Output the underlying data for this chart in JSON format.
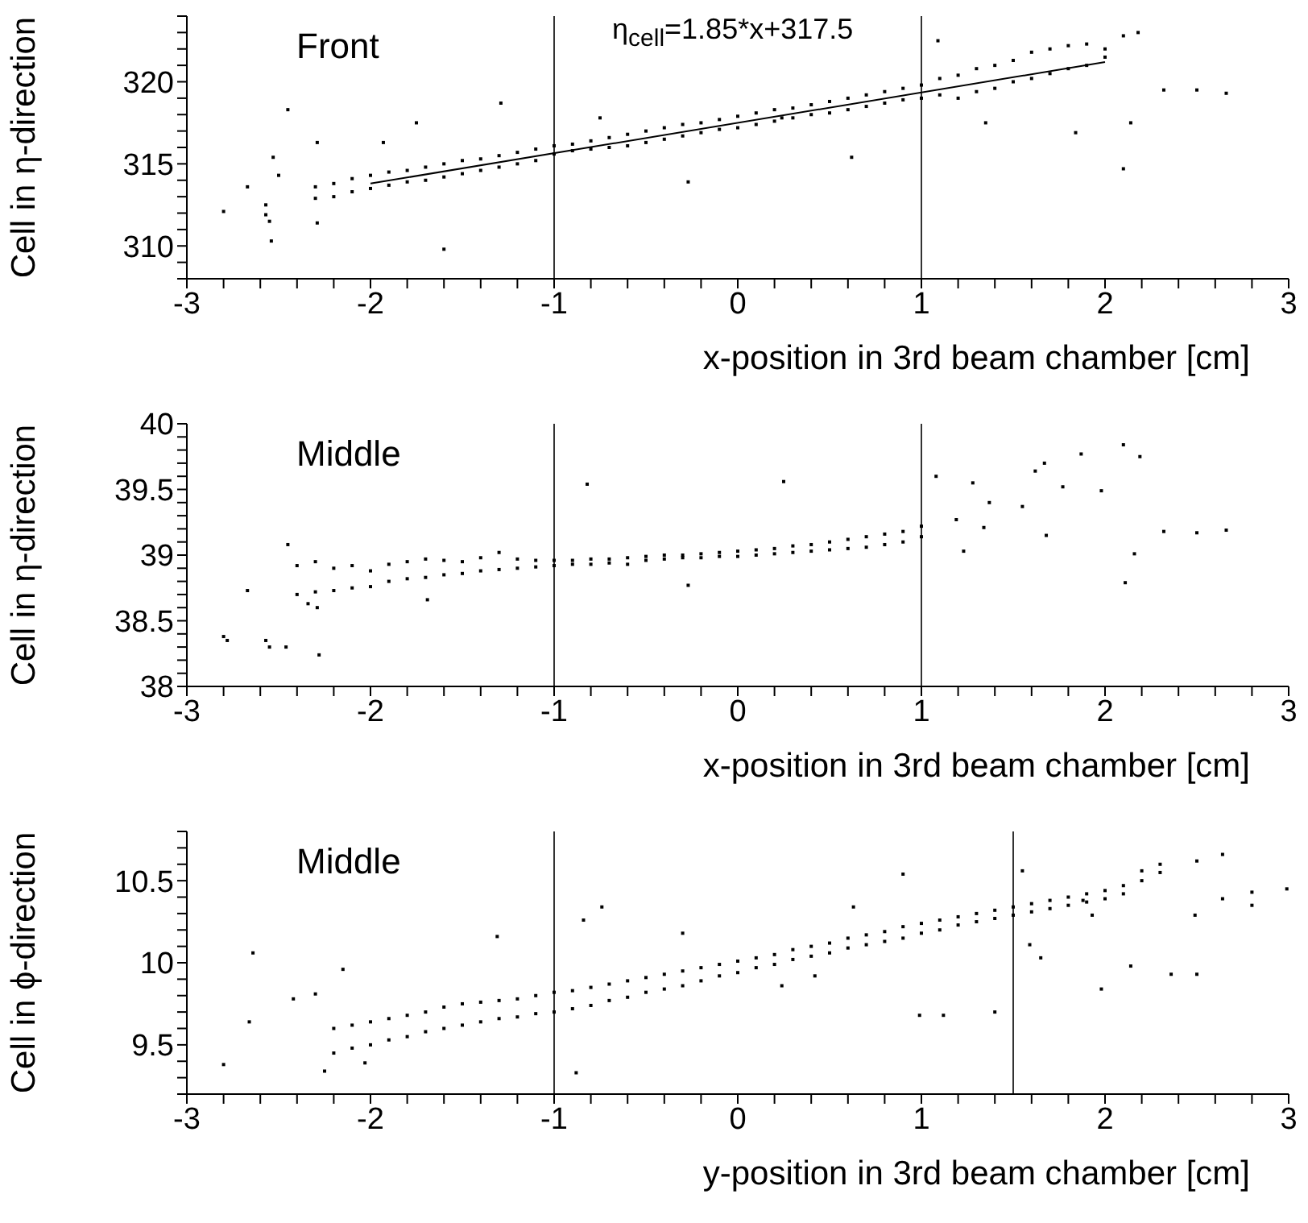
{
  "chart_data": [
    {
      "type": "scatter",
      "xlabel": "x-position in 3rd beam chamber [cm]",
      "ylabel": "Cell in η-direction",
      "annotations": [
        "Front",
        "η$_{cell}$=1.85*x+317.5"
      ],
      "marker": "square",
      "xlim": [
        -3,
        3
      ],
      "ylim": [
        308,
        324
      ],
      "xticks": [
        -3,
        {
          "value": -2.8,
          "label": null
        },
        {
          "value": -2.6,
          "label": null
        },
        {
          "value": -2.4,
          "label": null
        },
        {
          "value": -2.2,
          "label": null
        },
        -2,
        {
          "value": -1.8,
          "label": null
        },
        {
          "value": -1.6,
          "label": null
        },
        {
          "value": -1.4,
          "label": null
        },
        {
          "value": -1.2,
          "label": null
        },
        -1,
        {
          "value": -0.8,
          "label": null
        },
        {
          "value": -0.6,
          "label": null
        },
        {
          "value": -0.4,
          "label": null
        },
        {
          "value": -0.2,
          "label": null
        },
        0,
        {
          "value": 0.2,
          "label": null
        },
        {
          "value": 0.4,
          "label": null
        },
        {
          "value": 0.6,
          "label": null
        },
        {
          "value": 0.8,
          "label": null
        },
        1,
        {
          "value": 1.2,
          "label": null
        },
        {
          "value": 1.4,
          "label": null
        },
        {
          "value": 1.6,
          "label": null
        },
        {
          "value": 1.8,
          "label": null
        },
        2,
        {
          "value": 2.2,
          "label": null
        },
        {
          "value": 2.4,
          "label": null
        },
        {
          "value": 2.6,
          "label": null
        },
        {
          "value": 2.8,
          "label": null
        },
        3
      ],
      "yticks": [
        {
          "value": 308,
          "label": null
        },
        {
          "value": 309,
          "label": null
        },
        310,
        {
          "value": 311,
          "label": null
        },
        {
          "value": 312,
          "label": null
        },
        {
          "value": 313,
          "label": null
        },
        {
          "value": 314,
          "label": null
        },
        315,
        {
          "value": 316,
          "label": null
        },
        {
          "value": 317,
          "label": null
        },
        {
          "value": 318,
          "label": null
        },
        {
          "value": 319,
          "label": null
        },
        320,
        {
          "value": 321,
          "label": null
        },
        {
          "value": 322,
          "label": null
        },
        {
          "value": 323,
          "label": null
        },
        {
          "value": 324,
          "label": null
        }
      ],
      "ref_lines": [
        {
          "axis": "x",
          "value": -1
        },
        {
          "axis": "x",
          "value": 1
        }
      ],
      "series": [
        {
          "color": "#000000",
          "x": [
            -2.3,
            -2.2,
            -2.1,
            -2.0,
            -1.9,
            -1.8,
            -1.7,
            -1.6,
            -1.5,
            -1.4,
            -1.3,
            -1.2,
            -1.1,
            -1.0,
            -0.9,
            -0.8,
            -0.7,
            -0.6,
            -0.5,
            -0.4,
            -0.3,
            -0.2,
            -0.1,
            0.0,
            0.1,
            0.2,
            0.3,
            0.4,
            0.5,
            0.6,
            0.7,
            0.8,
            0.9,
            1.0,
            1.1,
            1.2,
            1.3,
            1.4,
            1.5,
            1.6,
            1.7,
            1.8,
            1.9,
            2.0,
            -2.3,
            -2.2,
            -2.1,
            -2.0,
            -1.9,
            -1.8,
            -1.7,
            -1.6,
            -1.5,
            -1.4,
            -1.3,
            -1.2,
            -1.1,
            -1.0,
            -0.9,
            -0.8,
            -0.7,
            -0.6,
            -0.5,
            -0.4,
            -0.3,
            -0.2,
            -0.1,
            0.0,
            0.1,
            0.2,
            0.3,
            0.4,
            0.5,
            0.6,
            0.7,
            0.8,
            0.9,
            1.0,
            1.1,
            1.2,
            1.3,
            1.4,
            1.5,
            1.6,
            1.7,
            1.8,
            1.9,
            2.0,
            -2.8,
            -2.67,
            -2.57,
            -2.57,
            -2.55,
            -2.54,
            -2.45,
            -2.53,
            -2.5,
            -2.29,
            -2.29,
            -1.6,
            -1.29,
            -0.27,
            0.62,
            1.09,
            2.1,
            2.18,
            2.1,
            2.14,
            2.32,
            2.5,
            2.66,
            1.84,
            1.35,
            0.24,
            -0.75,
            -1.75,
            -1.93
          ],
          "values": [
            313.6,
            313.8,
            314.1,
            314.3,
            314.5,
            314.6,
            314.8,
            315.0,
            315.2,
            315.3,
            315.5,
            315.7,
            315.9,
            316.1,
            316.2,
            316.4,
            316.6,
            316.8,
            317.0,
            317.2,
            317.4,
            317.5,
            317.7,
            317.9,
            318.1,
            318.3,
            318.4,
            318.6,
            318.8,
            319.0,
            319.2,
            319.4,
            319.6,
            319.8,
            320.2,
            320.4,
            320.8,
            321.0,
            321.3,
            321.8,
            322.0,
            322.2,
            322.3,
            322.0,
            312.9,
            313.0,
            313.3,
            313.5,
            313.7,
            313.9,
            314.0,
            314.2,
            314.4,
            314.6,
            314.8,
            315.0,
            315.2,
            315.6,
            315.8,
            315.9,
            316.0,
            316.1,
            316.3,
            316.5,
            316.7,
            316.9,
            317.1,
            317.2,
            317.4,
            317.6,
            317.8,
            318.0,
            318.1,
            318.3,
            318.5,
            318.7,
            318.9,
            319.0,
            319.2,
            319.0,
            319.4,
            319.6,
            320.0,
            320.2,
            320.5,
            320.8,
            321.0,
            321.5,
            312.1,
            313.6,
            312.5,
            311.9,
            311.5,
            310.3,
            318.3,
            315.4,
            314.3,
            316.3,
            311.4,
            309.8,
            318.7,
            313.9,
            315.4,
            322.5,
            322.8,
            323.0,
            314.7,
            317.5,
            319.5,
            319.5,
            319.3,
            316.9,
            317.5,
            317.8,
            317.8,
            317.5,
            316.3
          ]
        },
        {
          "type": "line",
          "marker": "none",
          "color": "#000000",
          "x": [
            -2,
            2
          ],
          "values": [
            313.8,
            321.2
          ]
        }
      ]
    },
    {
      "type": "scatter",
      "xlabel": "x-position in 3rd beam chamber [cm]",
      "ylabel": "Cell in η-direction",
      "annotations": [
        "Middle"
      ],
      "marker": "square",
      "xlim": [
        -3,
        3
      ],
      "ylim": [
        38,
        40
      ],
      "xticks": [
        -3,
        {
          "value": -2.8,
          "label": null
        },
        {
          "value": -2.6,
          "label": null
        },
        {
          "value": -2.4,
          "label": null
        },
        {
          "value": -2.2,
          "label": null
        },
        -2,
        {
          "value": -1.8,
          "label": null
        },
        {
          "value": -1.6,
          "label": null
        },
        {
          "value": -1.4,
          "label": null
        },
        {
          "value": -1.2,
          "label": null
        },
        -1,
        {
          "value": -0.8,
          "label": null
        },
        {
          "value": -0.6,
          "label": null
        },
        {
          "value": -0.4,
          "label": null
        },
        {
          "value": -0.2,
          "label": null
        },
        0,
        {
          "value": 0.2,
          "label": null
        },
        {
          "value": 0.4,
          "label": null
        },
        {
          "value": 0.6,
          "label": null
        },
        {
          "value": 0.8,
          "label": null
        },
        1,
        {
          "value": 1.2,
          "label": null
        },
        {
          "value": 1.4,
          "label": null
        },
        {
          "value": 1.6,
          "label": null
        },
        {
          "value": 1.8,
          "label": null
        },
        2,
        {
          "value": 2.2,
          "label": null
        },
        {
          "value": 2.4,
          "label": null
        },
        {
          "value": 2.6,
          "label": null
        },
        {
          "value": 2.8,
          "label": null
        },
        3
      ],
      "yticks": [
        38,
        {
          "value": 38.1,
          "label": null
        },
        {
          "value": 38.2,
          "label": null
        },
        {
          "value": 38.3,
          "label": null
        },
        {
          "value": 38.4,
          "label": null
        },
        38.5,
        {
          "value": 38.6,
          "label": null
        },
        {
          "value": 38.7,
          "label": null
        },
        {
          "value": 38.8,
          "label": null
        },
        {
          "value": 38.9,
          "label": null
        },
        39,
        {
          "value": 39.1,
          "label": null
        },
        {
          "value": 39.2,
          "label": null
        },
        {
          "value": 39.3,
          "label": null
        },
        {
          "value": 39.4,
          "label": null
        },
        39.5,
        {
          "value": 39.6,
          "label": null
        },
        {
          "value": 39.7,
          "label": null
        },
        {
          "value": 39.8,
          "label": null
        },
        {
          "value": 39.9,
          "label": null
        },
        40
      ],
      "ref_lines": [
        {
          "axis": "x",
          "value": -1
        },
        {
          "axis": "x",
          "value": 1
        }
      ],
      "series": [
        {
          "color": "#000000",
          "x": [
            -2.4,
            -2.3,
            -2.2,
            -2.1,
            -2.0,
            -1.9,
            -1.8,
            -1.7,
            -1.6,
            -1.5,
            -1.4,
            -1.3,
            -1.2,
            -1.1,
            -1.0,
            -0.9,
            -0.8,
            -0.7,
            -0.6,
            -0.5,
            -0.4,
            -0.3,
            -0.2,
            -0.1,
            0.0,
            0.1,
            0.2,
            0.3,
            0.4,
            0.5,
            0.6,
            0.7,
            0.8,
            0.9,
            1.0,
            -2.4,
            -2.3,
            -2.2,
            -2.1,
            -2.0,
            -1.9,
            -1.8,
            -1.7,
            -1.6,
            -1.5,
            -1.4,
            -1.3,
            -1.2,
            -1.1,
            -1.0,
            -0.9,
            -0.8,
            -0.7,
            -0.6,
            -0.5,
            -0.4,
            -0.3,
            -0.2,
            -0.1,
            0.0,
            0.1,
            0.2,
            0.3,
            0.4,
            0.5,
            0.6,
            0.7,
            0.8,
            0.9,
            1.0,
            -2.8,
            -2.78,
            -2.57,
            -2.55,
            -2.46,
            -2.28,
            -2.45,
            -2.67,
            -2.34,
            -2.29,
            -1.69,
            -0.82,
            -0.27,
            0.25,
            2.1,
            2.19,
            1.87,
            1.67,
            1.62,
            2.11,
            2.16,
            2.32,
            2.5,
            2.66,
            1.08,
            1.28,
            1.37,
            1.55,
            1.68,
            1.23,
            1.34,
            1.19,
            1.98,
            1.77
          ],
          "values": [
            38.92,
            38.95,
            38.9,
            38.92,
            38.88,
            38.93,
            38.95,
            38.97,
            38.96,
            38.95,
            38.98,
            39.02,
            38.97,
            38.96,
            38.96,
            38.96,
            38.97,
            38.97,
            38.98,
            38.99,
            39.0,
            39.0,
            39.01,
            39.02,
            39.03,
            39.04,
            39.05,
            39.07,
            39.08,
            39.1,
            39.12,
            39.14,
            39.16,
            39.18,
            39.22,
            38.7,
            38.72,
            38.73,
            38.75,
            38.76,
            38.8,
            38.82,
            38.83,
            38.85,
            38.86,
            38.88,
            38.89,
            38.9,
            38.91,
            38.92,
            38.93,
            38.93,
            38.94,
            38.93,
            38.96,
            38.97,
            38.98,
            38.98,
            38.99,
            38.99,
            39.0,
            39.01,
            39.02,
            39.03,
            39.04,
            39.05,
            39.06,
            39.08,
            39.1,
            39.14,
            38.38,
            38.35,
            38.35,
            38.3,
            38.3,
            38.24,
            39.08,
            38.73,
            38.63,
            38.6,
            38.66,
            39.54,
            38.77,
            39.56,
            39.84,
            39.75,
            39.77,
            39.7,
            39.64,
            38.79,
            39.01,
            39.18,
            39.17,
            39.19,
            39.6,
            39.55,
            39.4,
            39.37,
            39.15,
            39.03,
            39.21,
            39.27,
            39.49,
            39.52
          ]
        }
      ]
    },
    {
      "type": "scatter",
      "xlabel": "y-position in 3rd beam chamber [cm]",
      "ylabel": "Cell in ϕ-direction",
      "annotations": [
        "Middle"
      ],
      "marker": "square",
      "xlim": [
        -3,
        3
      ],
      "ylim": [
        9.2,
        10.8
      ],
      "xticks": [
        -3,
        {
          "value": -2.8,
          "label": null
        },
        {
          "value": -2.6,
          "label": null
        },
        {
          "value": -2.4,
          "label": null
        },
        {
          "value": -2.2,
          "label": null
        },
        -2,
        {
          "value": -1.8,
          "label": null
        },
        {
          "value": -1.6,
          "label": null
        },
        {
          "value": -1.4,
          "label": null
        },
        {
          "value": -1.2,
          "label": null
        },
        -1,
        {
          "value": -0.8,
          "label": null
        },
        {
          "value": -0.6,
          "label": null
        },
        {
          "value": -0.4,
          "label": null
        },
        {
          "value": -0.2,
          "label": null
        },
        0,
        {
          "value": 0.2,
          "label": null
        },
        {
          "value": 0.4,
          "label": null
        },
        {
          "value": 0.6,
          "label": null
        },
        {
          "value": 0.8,
          "label": null
        },
        1,
        {
          "value": 1.2,
          "label": null
        },
        {
          "value": 1.4,
          "label": null
        },
        {
          "value": 1.6,
          "label": null
        },
        {
          "value": 1.8,
          "label": null
        },
        2,
        {
          "value": 2.2,
          "label": null
        },
        {
          "value": 2.4,
          "label": null
        },
        {
          "value": 2.6,
          "label": null
        },
        {
          "value": 2.8,
          "label": null
        },
        3
      ],
      "yticks": [
        {
          "value": 9.2,
          "label": null
        },
        {
          "value": 9.3,
          "label": null
        },
        {
          "value": 9.4,
          "label": null
        },
        9.5,
        {
          "value": 9.6,
          "label": null
        },
        {
          "value": 9.7,
          "label": null
        },
        {
          "value": 9.8,
          "label": null
        },
        {
          "value": 9.9,
          "label": null
        },
        10,
        {
          "value": 10.1,
          "label": null
        },
        {
          "value": 10.2,
          "label": null
        },
        {
          "value": 10.3,
          "label": null
        },
        {
          "value": 10.4,
          "label": null
        },
        10.5,
        {
          "value": 10.6,
          "label": null
        },
        {
          "value": 10.7,
          "label": null
        },
        {
          "value": 10.8,
          "label": null
        }
      ],
      "ref_lines": [
        {
          "axis": "x",
          "value": -1
        },
        {
          "axis": "x",
          "value": 1.5
        }
      ],
      "series": [
        {
          "color": "#000000",
          "x": [
            -2.2,
            -2.1,
            -2.0,
            -1.9,
            -1.8,
            -1.7,
            -1.6,
            -1.5,
            -1.4,
            -1.3,
            -1.2,
            -1.1,
            -1.0,
            -0.9,
            -0.8,
            -0.7,
            -0.6,
            -0.5,
            -0.4,
            -0.3,
            -0.2,
            -0.1,
            0.0,
            0.1,
            0.2,
            0.3,
            0.4,
            0.5,
            0.6,
            0.7,
            0.8,
            0.9,
            1.0,
            1.1,
            1.2,
            1.3,
            1.4,
            1.5,
            1.6,
            1.7,
            1.8,
            1.9,
            2.0,
            2.1,
            2.2,
            2.3,
            -2.2,
            -2.1,
            -2.0,
            -1.9,
            -1.8,
            -1.7,
            -1.6,
            -1.5,
            -1.4,
            -1.3,
            -1.2,
            -1.1,
            -1.0,
            -0.9,
            -0.8,
            -0.7,
            -0.6,
            -0.5,
            -0.4,
            -0.3,
            -0.2,
            -0.1,
            0.0,
            0.1,
            0.2,
            0.3,
            0.4,
            0.5,
            0.6,
            0.7,
            0.8,
            0.9,
            1.0,
            1.1,
            1.2,
            1.3,
            1.4,
            1.5,
            1.6,
            1.7,
            1.8,
            1.9,
            2.0,
            2.1,
            2.2,
            2.3,
            -2.8,
            -2.64,
            -2.66,
            -2.42,
            -2.3,
            -2.25,
            -2.15,
            -2.03,
            -1.31,
            -0.88,
            -0.84,
            -0.74,
            -0.3,
            0.9,
            0.63,
            0.99,
            1.12,
            1.4,
            1.55,
            1.59,
            1.65,
            1.88,
            1.93,
            1.98,
            2.14,
            2.36,
            2.5,
            2.49,
            2.64,
            2.8,
            2.8,
            2.99,
            2.64,
            2.5,
            0.24,
            0.42
          ],
          "values": [
            9.6,
            9.62,
            9.64,
            9.66,
            9.68,
            9.7,
            9.73,
            9.75,
            9.76,
            9.77,
            9.78,
            9.8,
            9.82,
            9.83,
            9.85,
            9.87,
            9.89,
            9.91,
            9.93,
            9.95,
            9.97,
            9.99,
            10.01,
            10.03,
            10.05,
            10.08,
            10.1,
            10.12,
            10.15,
            10.17,
            10.19,
            10.22,
            10.24,
            10.26,
            10.28,
            10.3,
            10.32,
            10.34,
            10.36,
            10.38,
            10.4,
            10.42,
            10.44,
            10.47,
            10.56,
            10.6,
            9.45,
            9.48,
            9.5,
            9.53,
            9.55,
            9.58,
            9.6,
            9.62,
            9.64,
            9.66,
            9.67,
            9.69,
            9.7,
            9.72,
            9.74,
            9.77,
            9.79,
            9.82,
            9.84,
            9.86,
            9.89,
            9.92,
            9.94,
            9.97,
            9.99,
            10.02,
            10.04,
            10.06,
            10.09,
            10.11,
            10.13,
            10.15,
            10.18,
            10.2,
            10.23,
            10.25,
            10.27,
            10.29,
            10.31,
            10.33,
            10.35,
            10.37,
            10.39,
            10.42,
            10.5,
            10.55,
            9.38,
            10.06,
            9.64,
            9.78,
            9.81,
            9.34,
            9.96,
            9.39,
            10.16,
            9.33,
            10.26,
            10.34,
            10.18,
            10.54,
            10.34,
            9.68,
            9.68,
            9.7,
            10.56,
            10.11,
            10.03,
            10.38,
            10.29,
            9.84,
            9.98,
            9.93,
            9.93,
            10.29,
            10.39,
            10.43,
            10.35,
            10.45,
            10.66,
            10.62,
            9.86,
            9.92
          ]
        }
      ]
    }
  ]
}
